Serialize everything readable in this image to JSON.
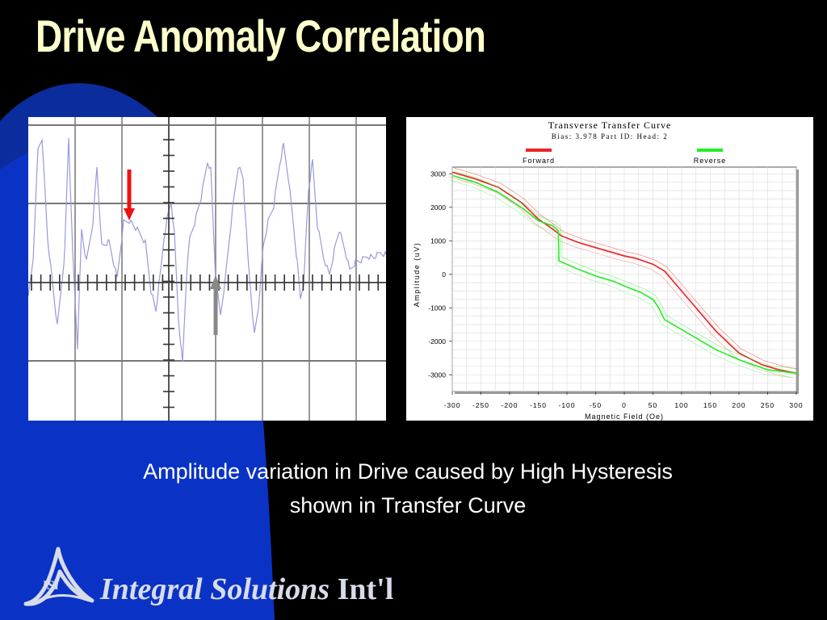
{
  "slide": {
    "title": "Drive Anomaly Correlation",
    "caption_line1": "Amplitude variation in Drive caused by High Hysteresis",
    "caption_line2": "shown in Transfer Curve",
    "logo_text": "ISI",
    "company_name": "Integral Solutions",
    "company_suffix": "Int'l",
    "colors": {
      "background": "#000000",
      "wave": "#0a33c6",
      "title": "#ffffcc",
      "caption": "#ffffff"
    }
  },
  "scope": {
    "trace_color": "#9999dd",
    "markers": [
      {
        "name": "anomaly-marker",
        "color": "#ee1111",
        "direction": "down"
      },
      {
        "name": "reference-marker",
        "color": "#888888",
        "direction": "up"
      }
    ]
  },
  "chart_data": {
    "type": "line",
    "title": "Transverse Transfer Curve",
    "subtitle": "Bias: 3.978 Part ID: Head: 2",
    "xlabel": "Magnetic Field (Oe)",
    "ylabel": "Amplitude (uV)",
    "xlim": [
      -300,
      300
    ],
    "ylim": [
      -3500,
      3200
    ],
    "xticks": [
      -300,
      -250,
      -200,
      -150,
      -100,
      -50,
      0,
      50,
      100,
      150,
      200,
      250,
      300
    ],
    "yticks": [
      3000,
      2000,
      1000,
      0,
      -1000,
      -2000,
      -3000
    ],
    "grid": true,
    "legend_position": "top",
    "series": [
      {
        "name": "Forward",
        "color": "#ee2222",
        "x": [
          -300,
          -260,
          -220,
          -180,
          -150,
          -125,
          -110,
          -80,
          -50,
          -20,
          0,
          20,
          50,
          70,
          80,
          100,
          130,
          160,
          200,
          240,
          270,
          300
        ],
        "y": [
          3050,
          2850,
          2600,
          2150,
          1650,
          1350,
          1150,
          950,
          800,
          650,
          550,
          480,
          300,
          100,
          -100,
          -500,
          -1100,
          -1700,
          -2350,
          -2700,
          -2850,
          -2950
        ]
      },
      {
        "name": "Reverse",
        "color": "#22ee22",
        "x": [
          -300,
          -260,
          -220,
          -180,
          -150,
          -125,
          -115,
          -114,
          -80,
          -50,
          -20,
          0,
          30,
          50,
          60,
          70,
          100,
          130,
          160,
          200,
          250,
          300
        ],
        "y": [
          2950,
          2750,
          2450,
          2000,
          1600,
          1450,
          1300,
          400,
          150,
          -50,
          -200,
          -350,
          -550,
          -750,
          -1000,
          -1350,
          -1650,
          -1950,
          -2250,
          -2550,
          -2850,
          -2950
        ]
      }
    ]
  }
}
